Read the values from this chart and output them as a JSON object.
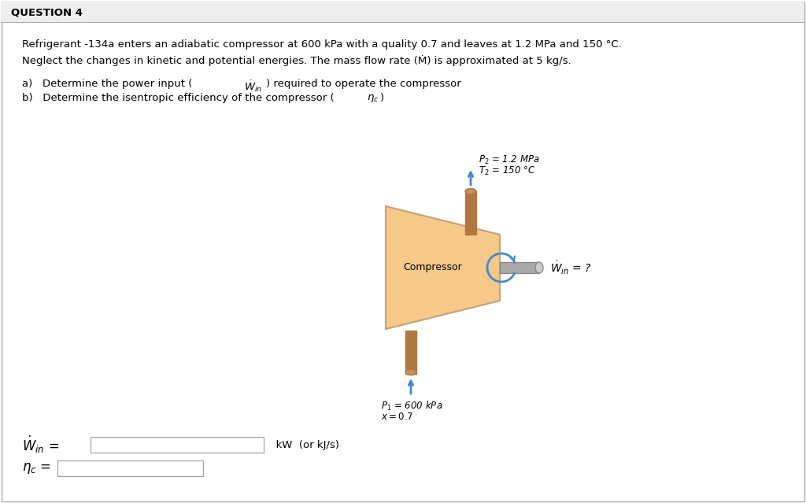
{
  "title": "QUESTION 4",
  "bg_color": "#ffffff",
  "border_color": "#aaaaaa",
  "line1": "Refrigerant -134a enters an adiabatic compressor at 600 kPa with a quality 0.7 and leaves at 1.2 MPa and 150 °C.",
  "line2": "Neglect the changes in kinetic and potential energies. The mass flow rate (Ṁ) is approximated at 5 kg/s.",
  "part_a_prefix": "a)   Determine the power input (",
  "part_a_suffix": ") required to operate the compressor",
  "part_b_prefix": "b)   Determine the isentropic efficiency of the compressor (",
  "part_b_suffix": ")",
  "compressor_color": "#f5c98a",
  "compressor_outline": "#c8a070",
  "pipe_color": "#b07840",
  "shaft_color": "#aaaaaa",
  "shaft_dark": "#888888",
  "arrow_color": "#4488cc",
  "label_p2": "P",
  "label_p2_sub": "2",
  "label_p2_val": " = 1.2 MPa",
  "label_t2": "T",
  "label_t2_sub": "2",
  "label_t2_val": " = 150 °C",
  "label_p1": "P",
  "label_p1_sub": "1",
  "label_p1_val": " = 600 kPa",
  "label_x_val": "x = 0.7",
  "label_compressor": "Compressor",
  "answer_win_unit": "kW  (or kJ/s)"
}
